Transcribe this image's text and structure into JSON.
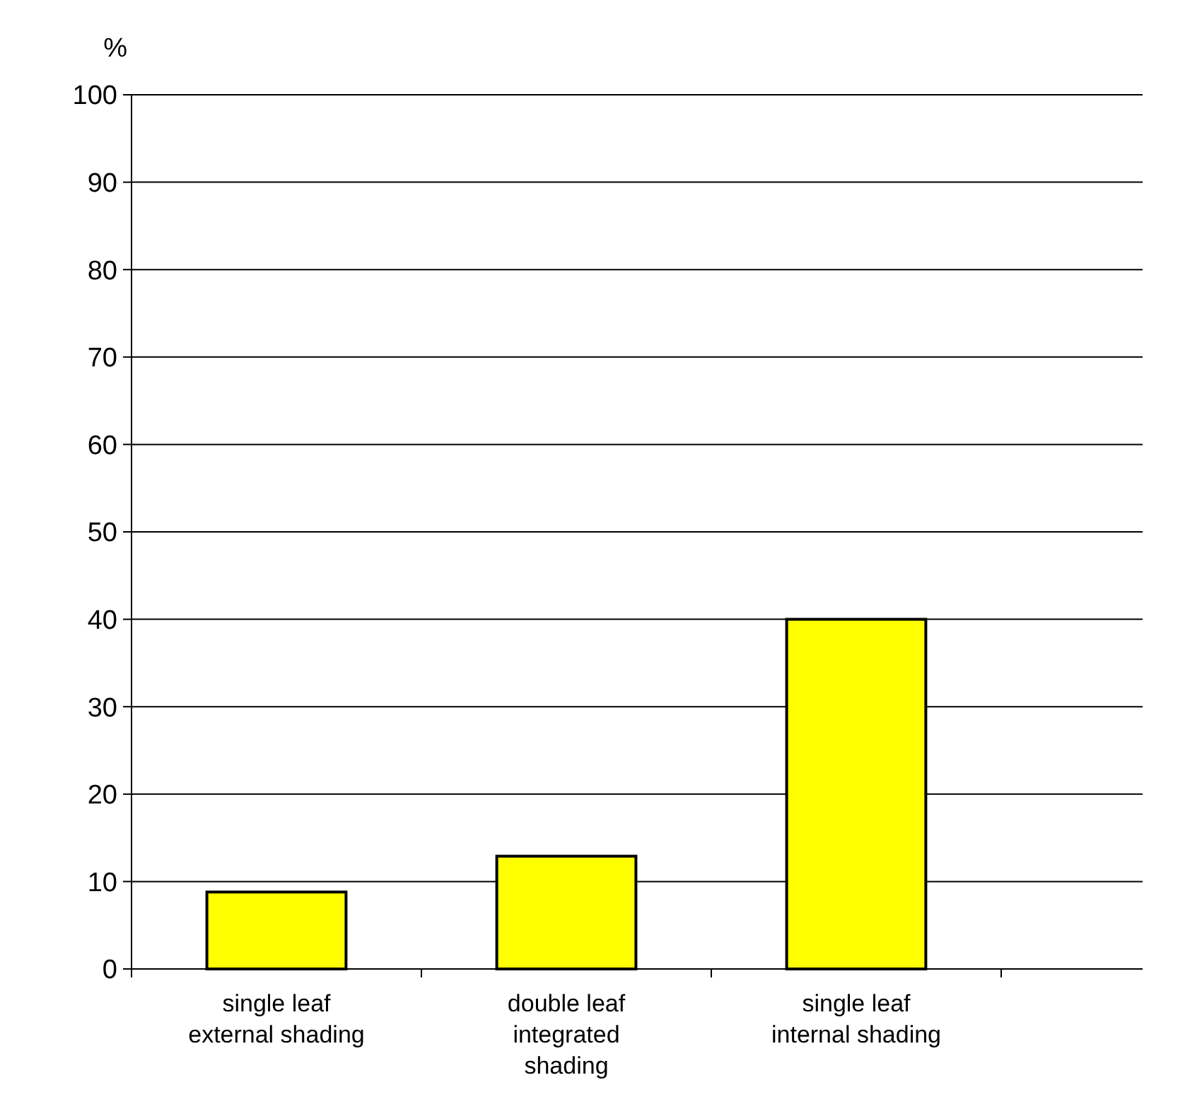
{
  "chart_data": {
    "type": "bar",
    "ylabel": "%",
    "categories": [
      "single leaf external shading",
      "double leaf integrated shading",
      "single leaf internal shading"
    ],
    "values": [
      8.8,
      12.9,
      40
    ],
    "color": "#ffff00",
    "ylim": [
      0,
      100
    ],
    "yticks": [
      0,
      10,
      20,
      30,
      40,
      50,
      60,
      70,
      80,
      90,
      100
    ],
    "grid": "y"
  }
}
